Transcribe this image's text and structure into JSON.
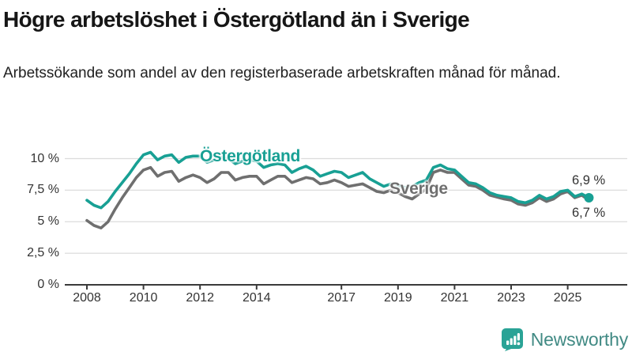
{
  "header": {
    "title": "Högre arbetslöshet i Östergötland än i Sverige",
    "subtitle": "Arbetssökande som andel av den registerbaserade arbetskraften månad för månad."
  },
  "colors": {
    "accent_teal": "#18a094",
    "sweden_gray": "#6f6f6f",
    "logo_icon_teal": "#2aa396",
    "brand_text": "#418a84",
    "axis_text": "#333333",
    "gridline": "#dcdcdc",
    "axis_line": "#3a3a3a"
  },
  "chart_data": {
    "type": "line",
    "title": "Högre arbetslöshet i Östergötland än i Sverige",
    "subtitle": "Arbetssökande som andel av den registerbaserade arbetskraften månad för månad.",
    "unit": "%",
    "grid": true,
    "legend_position": "inline-labels-on-lines",
    "x": {
      "start": 2008.0,
      "step": 0.25,
      "end": 2025.75
    },
    "x_axis": {
      "tick_years": [
        2008,
        2010,
        2012,
        2014,
        2017,
        2019,
        2021,
        2023,
        2025
      ],
      "tick_labels": [
        "2008",
        "2010",
        "2012",
        "2014",
        "2017",
        "2019",
        "2021",
        "2023",
        "2025"
      ],
      "range": [
        2007.2,
        2026.2
      ]
    },
    "y_axis": {
      "ticks": [
        {
          "value": 0,
          "label": "0 %"
        },
        {
          "value": 2.5,
          "label": "2,5 %"
        },
        {
          "value": 5,
          "label": "5 %"
        },
        {
          "value": 7.5,
          "label": "7,5 %"
        },
        {
          "value": 10,
          "label": "10 %"
        }
      ],
      "range": [
        0,
        11
      ]
    },
    "series": [
      {
        "name": "Östergötland",
        "color": "#18a094",
        "end_label": "6,9 %",
        "end_value": 6.9,
        "values": [
          6.7,
          6.3,
          6.1,
          6.6,
          7.4,
          8.1,
          8.8,
          9.6,
          10.3,
          10.5,
          9.9,
          10.2,
          10.3,
          9.7,
          10.1,
          10.2,
          10.2,
          9.7,
          9.9,
          10.1,
          10.0,
          9.6,
          9.8,
          9.9,
          9.8,
          9.3,
          9.5,
          9.6,
          9.5,
          8.9,
          9.2,
          9.4,
          9.1,
          8.6,
          8.8,
          9.0,
          8.9,
          8.5,
          8.7,
          8.9,
          8.4,
          8.1,
          7.8,
          8.0,
          7.9,
          7.7,
          7.8,
          8.1,
          8.3,
          9.3,
          9.5,
          9.2,
          9.1,
          8.6,
          8.1,
          8.0,
          7.7,
          7.3,
          7.1,
          7.0,
          6.9,
          6.6,
          6.5,
          6.7,
          7.1,
          6.8,
          7.0,
          7.4,
          7.5,
          7.0,
          7.2,
          6.9
        ]
      },
      {
        "name": "Sverige",
        "color": "#6f6f6f",
        "end_label": "6,7 %",
        "end_value": 6.7,
        "values": [
          5.1,
          4.7,
          4.5,
          5.0,
          6.0,
          6.9,
          7.7,
          8.5,
          9.1,
          9.3,
          8.6,
          8.9,
          9.0,
          8.2,
          8.5,
          8.7,
          8.5,
          8.1,
          8.4,
          8.9,
          8.9,
          8.3,
          8.5,
          8.6,
          8.6,
          8.0,
          8.3,
          8.6,
          8.6,
          8.1,
          8.3,
          8.5,
          8.4,
          8.0,
          8.1,
          8.3,
          8.1,
          7.8,
          7.9,
          8.0,
          7.7,
          7.4,
          7.3,
          7.5,
          7.3,
          7.0,
          6.8,
          7.2,
          7.6,
          8.9,
          9.1,
          8.9,
          8.9,
          8.4,
          7.9,
          7.8,
          7.5,
          7.1,
          6.95,
          6.8,
          6.7,
          6.4,
          6.3,
          6.5,
          6.9,
          6.6,
          6.8,
          7.2,
          7.4,
          6.9,
          7.1,
          6.7
        ]
      }
    ]
  },
  "footer": {
    "brand": "Newsworthy"
  }
}
